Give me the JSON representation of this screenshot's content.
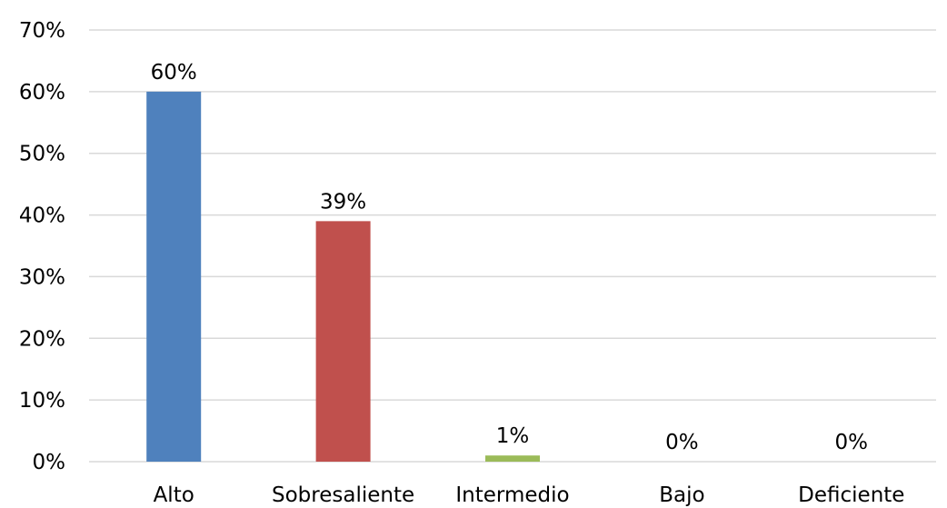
{
  "chart_data": {
    "type": "bar",
    "title": "",
    "xlabel": "",
    "ylabel": "",
    "categories": [
      "Alto",
      "Sobresaliente",
      "Intermedio",
      "Bajo",
      "Deficiente"
    ],
    "values": [
      60,
      39,
      1,
      0,
      0
    ],
    "data_labels": [
      "60%",
      "39%",
      "1%",
      "0%",
      "0%"
    ],
    "colors": [
      "#4f81bd",
      "#c0504d",
      "#9bbb59",
      "#8064a2",
      "#4bacc6"
    ],
    "ylim": [
      0,
      70
    ],
    "yticks": [
      0,
      10,
      20,
      30,
      40,
      50,
      60,
      70
    ],
    "ytick_labels": [
      "0%",
      "10%",
      "20%",
      "30%",
      "40%",
      "50%",
      "60%",
      "70%"
    ],
    "grid": true,
    "legend": "none"
  }
}
